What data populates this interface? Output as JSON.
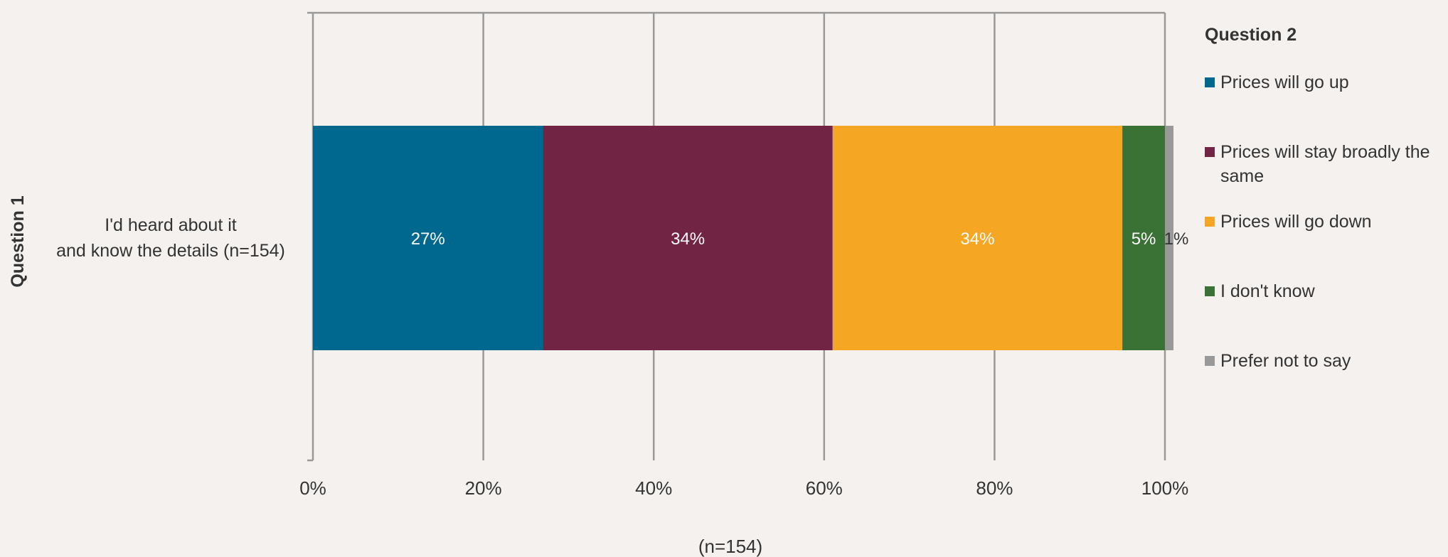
{
  "chart_data": {
    "type": "bar",
    "orientation": "horizontal",
    "stacked": true,
    "categories": [
      "I'd heard about it\nand know the details (n=154)"
    ],
    "series": [
      {
        "name": "Prices will go up",
        "values": [
          27
        ],
        "label": "27%",
        "color": "#00688f"
      },
      {
        "name": "Prices will stay broadly the same",
        "values": [
          34
        ],
        "label": "34%",
        "color": "#722445"
      },
      {
        "name": "Prices will go down",
        "values": [
          34
        ],
        "label": "34%",
        "color": "#f5a623"
      },
      {
        "name": "I don't know",
        "values": [
          5
        ],
        "label": "5%",
        "color": "#3a7134"
      },
      {
        "name": "Prefer not to say",
        "values": [
          1
        ],
        "label": "1%",
        "color": "#999999"
      }
    ],
    "xlim": [
      0,
      100
    ],
    "xticks": [
      "0%",
      "20%",
      "40%",
      "60%",
      "80%",
      "100%"
    ],
    "xlabel": "(n=154)",
    "ylabel": "Question 1",
    "legend": {
      "title": "Question 2",
      "position": "right"
    },
    "grid": true,
    "label_colors": {
      "light": "#ffffff",
      "dark": "#333333"
    },
    "axis_color": "#999999"
  }
}
